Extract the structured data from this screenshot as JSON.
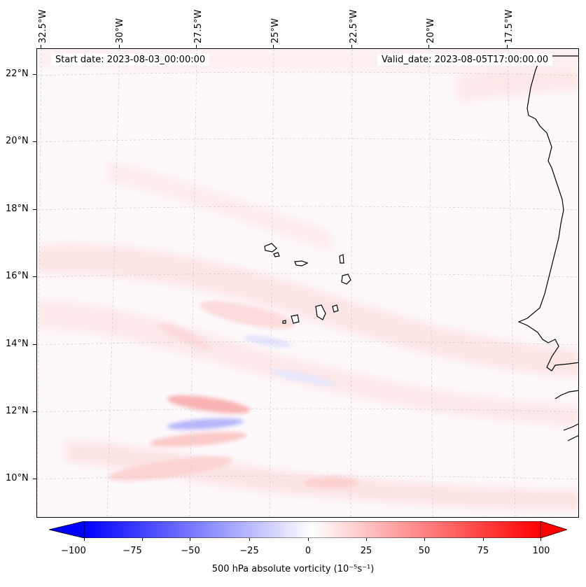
{
  "map": {
    "start_date": "Start date: 2023-08-03_00:00:00",
    "valid_date": "Valid_date: 2023-08-05T17:00:00.00",
    "lon_labels": [
      "32.5°W",
      "30°W",
      "27.5°W",
      "25°W",
      "22.5°W",
      "20°W",
      "17.5°W"
    ],
    "lat_labels": [
      "22°N",
      "20°N",
      "18°N",
      "16°N",
      "14°N",
      "12°N",
      "10°N"
    ],
    "colormap": "bwr",
    "negative_color": "#0000ff",
    "zero_color": "#ffffff",
    "positive_color": "#ff0000"
  },
  "colorbar": {
    "label": "500 hPa absolute vorticity (10⁻⁵s⁻¹)",
    "ticks": [
      "−100",
      "−75",
      "−50",
      "−25",
      "0",
      "25",
      "50",
      "75",
      "100"
    ],
    "min": -100,
    "max": 100
  }
}
